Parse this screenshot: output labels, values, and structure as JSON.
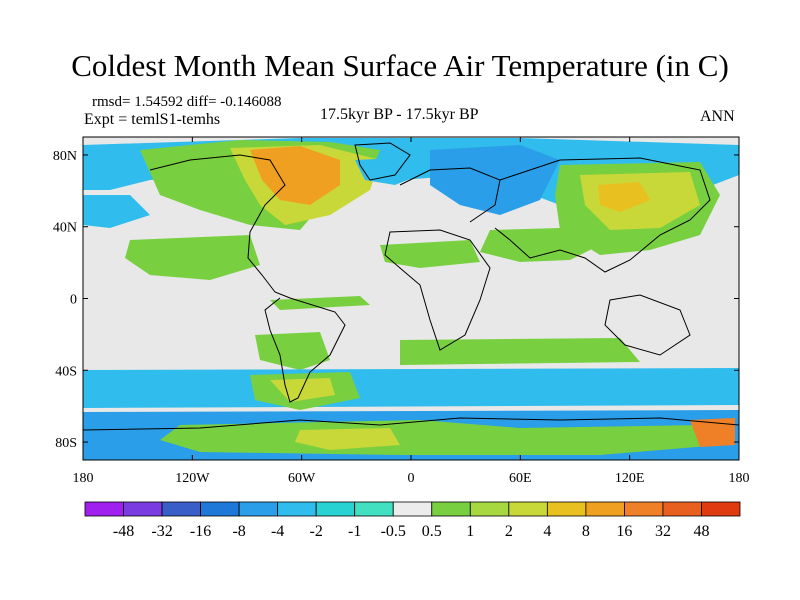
{
  "title": "Coldest Month Mean Surface Air Temperature (in C)",
  "stats": "rmsd= 1.54592  diff= -0.146088",
  "experiment": "Expt = temlS1-temhs",
  "period": "17.5kyr BP - 17.5kyr BP",
  "season": "ANN",
  "map": {
    "lon_range": [
      -180,
      180
    ],
    "lat_range": [
      -90,
      90
    ],
    "lon_ticks": [
      {
        "value": -180,
        "label": "180"
      },
      {
        "value": -120,
        "label": "120W"
      },
      {
        "value": -60,
        "label": "60W"
      },
      {
        "value": 0,
        "label": "0"
      },
      {
        "value": 60,
        "label": "60E"
      },
      {
        "value": 120,
        "label": "120E"
      },
      {
        "value": 180,
        "label": "180"
      }
    ],
    "lat_ticks": [
      {
        "value": 80,
        "label": "80N"
      },
      {
        "value": 40,
        "label": "40N"
      },
      {
        "value": 0,
        "label": "0"
      },
      {
        "value": -40,
        "label": "40S"
      },
      {
        "value": -80,
        "label": "80S"
      }
    ],
    "background_color": "#e8e8e8"
  },
  "colorbar": {
    "colors": [
      "#a020f0",
      "#7a3ce0",
      "#3a5ec8",
      "#1e78d8",
      "#2a9ee8",
      "#30bcec",
      "#28d2d2",
      "#40e0c0",
      "#ececec",
      "#78d040",
      "#a8d840",
      "#c8d838",
      "#e8c020",
      "#f0a020",
      "#f08028",
      "#e86020",
      "#e03a10"
    ],
    "labels": [
      "-48",
      "-32",
      "-16",
      "-8",
      "-4",
      "-2",
      "-1",
      "-0.5",
      "0.5",
      "1",
      "2",
      "4",
      "8",
      "16",
      "32",
      "48"
    ]
  }
}
